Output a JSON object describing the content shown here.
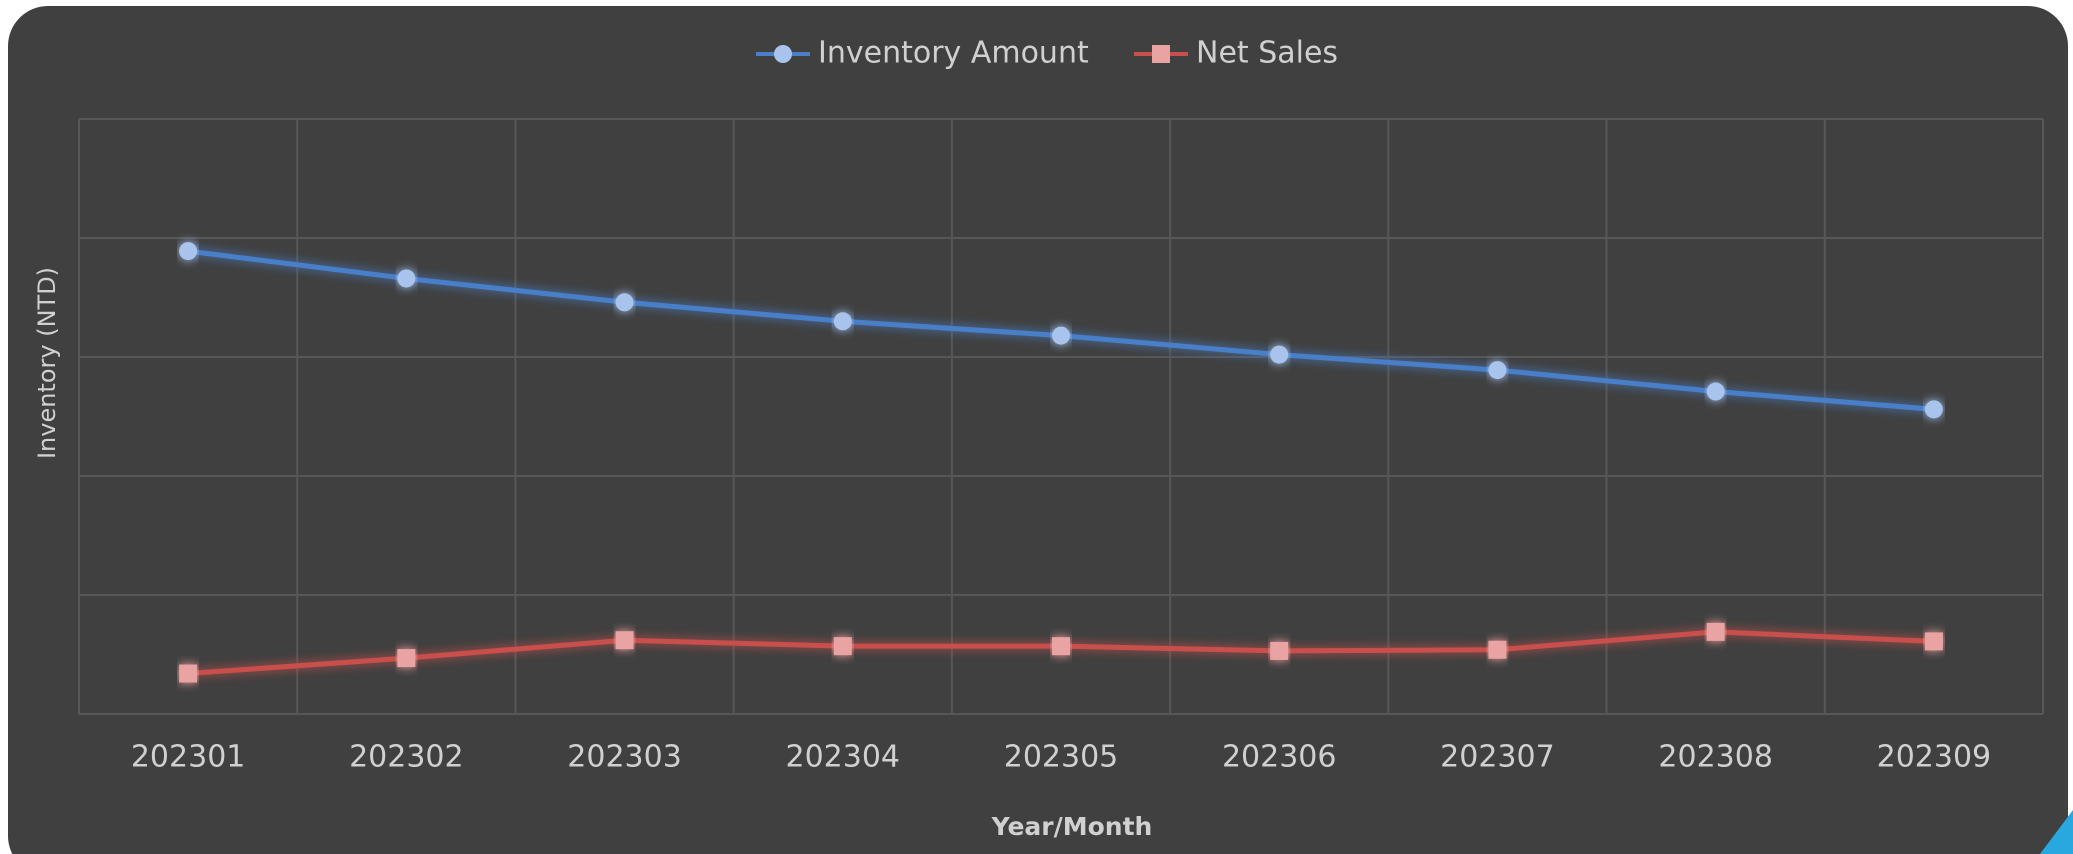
{
  "chart_data": {
    "type": "line",
    "categories": [
      "202301",
      "202302",
      "202303",
      "202304",
      "202305",
      "202306",
      "202307",
      "202308",
      "202309"
    ],
    "series": [
      {
        "name": "Inventory Amount",
        "color": "#4a7fc9",
        "values": [
          3.89,
          3.66,
          3.46,
          3.3,
          3.18,
          3.02,
          2.89,
          2.71,
          2.56
        ]
      },
      {
        "name": "Net Sales",
        "color": "#c8504c",
        "values": [
          0.34,
          0.47,
          0.62,
          0.57,
          0.57,
          0.53,
          0.54,
          0.69,
          0.61
        ]
      }
    ],
    "ylabel": "Inventory (NTD)",
    "xlabel": "Year/Month",
    "ylim": [
      0,
      5
    ],
    "yticks": [
      0,
      1,
      2,
      3,
      4,
      5
    ],
    "grid": true
  }
}
